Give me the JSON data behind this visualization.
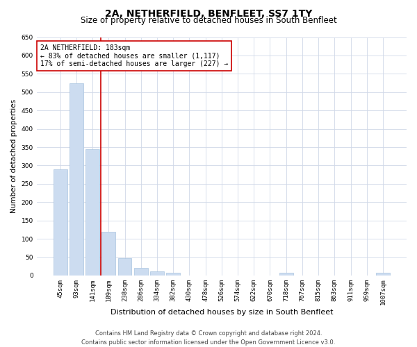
{
  "title": "2A, NETHERFIELD, BENFLEET, SS7 1TY",
  "subtitle": "Size of property relative to detached houses in South Benfleet",
  "xlabel": "Distribution of detached houses by size in South Benfleet",
  "ylabel": "Number of detached properties",
  "categories": [
    "45sqm",
    "93sqm",
    "141sqm",
    "189sqm",
    "238sqm",
    "286sqm",
    "334sqm",
    "382sqm",
    "430sqm",
    "478sqm",
    "526sqm",
    "574sqm",
    "622sqm",
    "670sqm",
    "718sqm",
    "767sqm",
    "815sqm",
    "863sqm",
    "911sqm",
    "959sqm",
    "1007sqm"
  ],
  "values": [
    290,
    525,
    345,
    120,
    47,
    20,
    12,
    7,
    0,
    0,
    0,
    0,
    0,
    0,
    8,
    0,
    0,
    0,
    0,
    0,
    7
  ],
  "bar_color": "#ccdcf0",
  "bar_edge_color": "#aac4e0",
  "vline_color": "#cc0000",
  "annotation_text": "2A NETHERFIELD: 183sqm\n← 83% of detached houses are smaller (1,117)\n17% of semi-detached houses are larger (227) →",
  "annotation_box_color": "#ffffff",
  "annotation_box_edge_color": "#cc0000",
  "ylim": [
    0,
    650
  ],
  "yticks": [
    0,
    50,
    100,
    150,
    200,
    250,
    300,
    350,
    400,
    450,
    500,
    550,
    600,
    650
  ],
  "grid_color": "#d0d8e8",
  "footnote": "Contains HM Land Registry data © Crown copyright and database right 2024.\nContains public sector information licensed under the Open Government Licence v3.0.",
  "title_fontsize": 10,
  "subtitle_fontsize": 8.5,
  "xlabel_fontsize": 8,
  "ylabel_fontsize": 7.5,
  "tick_fontsize": 6.5,
  "annotation_fontsize": 7,
  "footnote_fontsize": 6
}
